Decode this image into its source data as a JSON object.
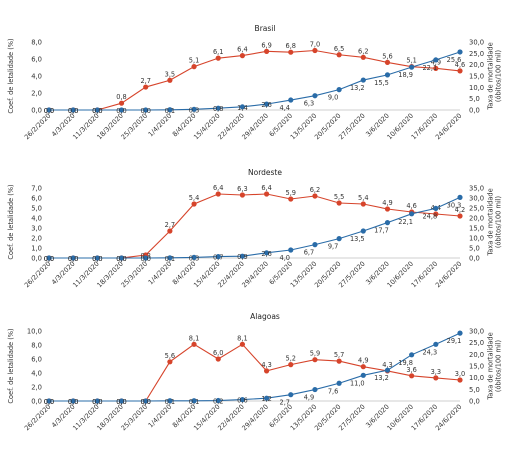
{
  "chart_data": [
    {
      "type": "line",
      "title": "Brasil",
      "ylabel_left": "Coef. de letalidade (%)",
      "ylabel_right": "Taxa de mortalidade (óbitos/100 mil)",
      "categories": [
        "26/2/2020",
        "4/3/2020",
        "11/3/2020",
        "18/3/2020",
        "25/3/2020",
        "1/4/2020",
        "8/4/2020",
        "15/4/2020",
        "22/4/2020",
        "29/4/2020",
        "6/5/2020",
        "13/5/2020",
        "20/5/2020",
        "27/5/2020",
        "3/6/2020",
        "10/6/2020",
        "17/6/2020",
        "24/6/2020"
      ],
      "ylim_left": [
        0,
        8
      ],
      "yticks_left": [
        "0,0",
        "2,0",
        "4,0",
        "6,0",
        "8,0"
      ],
      "ylim_right": [
        0,
        30
      ],
      "yticks_right": [
        "0,0",
        "5,0",
        "10,0",
        "15,0",
        "20,0",
        "25,0",
        "30,0"
      ],
      "grid": false,
      "series": [
        {
          "axis": "left",
          "color": "#d6442b",
          "values": [
            0,
            0,
            0,
            0.8,
            2.7,
            3.5,
            5.1,
            6.1,
            6.4,
            6.9,
            6.8,
            7.0,
            6.5,
            6.2,
            5.6,
            5.1,
            4.9,
            4.6
          ],
          "labels": [
            "0,0",
            "0,0",
            "0,0",
            "0,8",
            "2,7",
            "3,5",
            "5,1",
            "6,1",
            "6,4",
            "6,9",
            "6,8",
            "7,0",
            "6,5",
            "6,2",
            "5,6",
            "5,1",
            "4,9",
            "4,6"
          ]
        },
        {
          "axis": "right",
          "color": "#2a6ca8",
          "values": [
            0,
            0,
            0,
            0,
            0,
            0.1,
            0.3,
            0.8,
            1.4,
            2.6,
            4.4,
            6.3,
            9.0,
            13.2,
            15.5,
            18.9,
            22.1,
            25.6
          ],
          "labels": [
            "0,0",
            "0,0",
            "0,0",
            "0,0",
            "0,0",
            "0,1",
            "0,3",
            "0,8",
            "1,4",
            "2,6",
            "4,4",
            "6,3",
            "9,0",
            "13,2",
            "15,5",
            "18,9",
            "22,1",
            "25,6"
          ]
        }
      ]
    },
    {
      "type": "line",
      "title": "Nordeste",
      "ylabel_left": "Coef. de letalidade (%)",
      "ylabel_right": "Taxa de mortalidade (óbitos/100 mil)",
      "categories": [
        "26/2/2020",
        "4/3/2020",
        "11/3/2020",
        "18/3/2020",
        "25/3/2020",
        "1/4/2020",
        "8/4/2020",
        "15/4/2020",
        "22/4/2020",
        "29/4/2020",
        "6/5/2020",
        "13/5/2020",
        "20/5/2020",
        "27/5/2020",
        "3/6/2020",
        "10/6/2020",
        "17/6/2020",
        "24/6/2020"
      ],
      "ylim_left": [
        0,
        7
      ],
      "yticks_left": [
        "0,0",
        "1,0",
        "2,0",
        "3,0",
        "4,0",
        "5,0",
        "6,0",
        "7,0"
      ],
      "ylim_right": [
        0,
        35
      ],
      "yticks_right": [
        "0,0",
        "5,0",
        "10,0",
        "15,0",
        "20,0",
        "25,0",
        "30,0",
        "35,0"
      ],
      "grid": false,
      "series": [
        {
          "axis": "left",
          "color": "#d6442b",
          "values": [
            0,
            0,
            0,
            0,
            0.3,
            2.7,
            5.4,
            6.4,
            6.3,
            6.4,
            5.9,
            6.2,
            5.5,
            5.4,
            4.9,
            4.6,
            4.4,
            4.2
          ],
          "labels": [
            "0,0",
            "0,0",
            "0,0",
            "0,0",
            "0,3",
            "2,7",
            "5,4",
            "6,4",
            "6,3",
            "6,4",
            "5,9",
            "6,2",
            "5,5",
            "5,4",
            "4,9",
            "4,6",
            "4,4",
            "4,2"
          ]
        },
        {
          "axis": "right",
          "color": "#2a6ca8",
          "values": [
            0,
            0,
            0,
            0,
            0,
            0.1,
            0.3,
            0.7,
            0.9,
            2.6,
            4.0,
            6.7,
            9.7,
            13.5,
            17.7,
            22.1,
            24.8,
            30.3
          ],
          "labels": [
            "0,0",
            "0,0",
            "0,0",
            "0,0",
            "0,0",
            "0,1",
            "0,3",
            "0,7",
            "0,9",
            "2,6",
            "4,0",
            "6,7",
            "9,7",
            "13,5",
            "17,7",
            "22,1",
            "24,8",
            "30,3"
          ]
        }
      ]
    },
    {
      "type": "line",
      "title": "Alagoas",
      "ylabel_left": "Coef. de letalidade (%)",
      "ylabel_right": "Taxa de mortalidade (óbitos/100 mil)",
      "categories": [
        "26/2/2020",
        "4/3/2020",
        "11/3/2020",
        "18/3/2020",
        "25/3/2020",
        "1/4/2020",
        "8/4/2020",
        "15/4/2020",
        "22/4/2020",
        "29/4/2020",
        "6/5/2020",
        "13/5/2020",
        "20/5/2020",
        "27/5/2020",
        "3/6/2020",
        "10/6/2020",
        "17/6/2020",
        "24/6/2020"
      ],
      "ylim_left": [
        0,
        10
      ],
      "yticks_left": [
        "0,0",
        "2,0",
        "4,0",
        "6,0",
        "8,0",
        "10,0"
      ],
      "ylim_right": [
        0,
        30
      ],
      "yticks_right": [
        "0,0",
        "5,0",
        "10,0",
        "15,0",
        "20,0",
        "25,0",
        "30,0"
      ],
      "grid": false,
      "series": [
        {
          "axis": "left",
          "color": "#d6442b",
          "values": [
            0,
            0,
            0,
            0,
            0,
            5.6,
            8.1,
            6.0,
            8.1,
            4.3,
            5.2,
            5.9,
            5.7,
            4.9,
            4.3,
            3.6,
            3.3,
            3.0
          ],
          "labels": [
            "0,0",
            "0,0",
            "0,0",
            "0,0",
            "0,0",
            "5,6",
            "8,1",
            "6,0",
            "8,1",
            "4,3",
            "5,2",
            "5,9",
            "5,7",
            "4,9",
            "4,3",
            "3,6",
            "3,3",
            "3,0"
          ]
        },
        {
          "axis": "right",
          "color": "#2a6ca8",
          "values": [
            0,
            0,
            0,
            0,
            0,
            0.1,
            0.1,
            0.2,
            0.6,
            1.2,
            2.7,
            4.9,
            7.6,
            11.0,
            13.2,
            19.8,
            24.3,
            29.1
          ],
          "labels": [
            "0,0",
            "0,0",
            "0,0",
            "0,0",
            "0,0",
            "0,1",
            "0,1",
            "0,2",
            "0,6",
            "1,2",
            "2,7",
            "4,9",
            "7,6",
            "11,0",
            "13,2",
            "19,8",
            "24,3",
            "29,1"
          ]
        }
      ]
    }
  ]
}
